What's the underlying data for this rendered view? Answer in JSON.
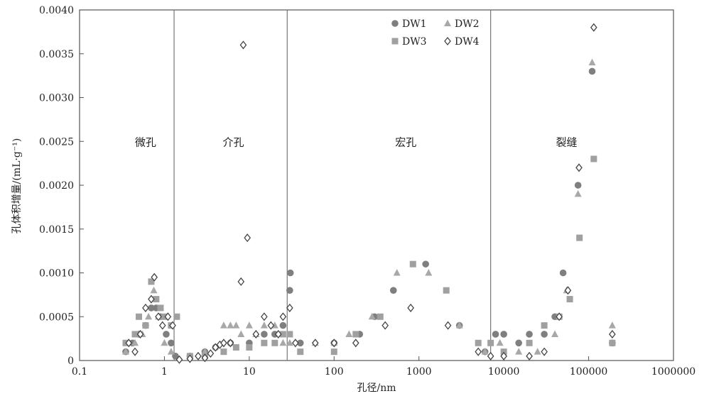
{
  "chart_data": {
    "type": "scatter",
    "x_scale": "log",
    "xlim": [
      0.1,
      1000000
    ],
    "ylim": [
      0,
      0.004
    ],
    "xlabel": "孔径/nm",
    "ylabel": "孔体积增量/(mL·g⁻¹)",
    "x_ticks": [
      "0.1",
      "1",
      "10",
      "100",
      "1000",
      "10000",
      "100000",
      "1000000"
    ],
    "y_ticks": [
      "0",
      "0.0005",
      "0.0010",
      "0.0015",
      "0.0020",
      "0.0025",
      "0.0030",
      "0.0035",
      "0.0040"
    ],
    "grid": false,
    "legend_position": "top-center",
    "dividers": [
      1.3,
      28,
      7000
    ],
    "regions": [
      {
        "label": "微孔",
        "x": 0.6
      },
      {
        "label": "介孔",
        "x": 6.5
      },
      {
        "label": "宏孔",
        "x": 700
      },
      {
        "label": "裂缝",
        "x": 55000
      }
    ],
    "series": [
      {
        "name": "DW1",
        "marker": "circle",
        "color": "#7f7f7f",
        "points": [
          [
            0.35,
            0.0001
          ],
          [
            0.42,
            0.0002
          ],
          [
            0.5,
            0.0003
          ],
          [
            0.6,
            0.0004
          ],
          [
            0.7,
            0.0006
          ],
          [
            0.8,
            0.0006
          ],
          [
            0.9,
            0.0005
          ],
          [
            1.05,
            0.0003
          ],
          [
            1.2,
            0.0002
          ],
          [
            1.35,
            5e-05
          ],
          [
            2,
            5e-05
          ],
          [
            3,
            0.0001
          ],
          [
            4,
            0.00015
          ],
          [
            6,
            0.0002
          ],
          [
            10,
            0.0002
          ],
          [
            15,
            0.0003
          ],
          [
            20,
            0.0003
          ],
          [
            25,
            0.0004
          ],
          [
            30,
            0.0008
          ],
          [
            30.5,
            0.001
          ],
          [
            40,
            0.0002
          ],
          [
            100,
            0.0002
          ],
          [
            200,
            0.0003
          ],
          [
            300,
            0.0005
          ],
          [
            500,
            0.0008
          ],
          [
            1200,
            0.0011
          ],
          [
            3000,
            0.0004
          ],
          [
            6000,
            0.0001
          ],
          [
            8000,
            0.0003
          ],
          [
            10000,
            0.0003
          ],
          [
            15000,
            0.0002
          ],
          [
            20000,
            0.0003
          ],
          [
            30000,
            0.0003
          ],
          [
            40000,
            0.0005
          ],
          [
            50000,
            0.001
          ],
          [
            75000,
            0.002
          ],
          [
            110000,
            0.0033
          ],
          [
            190000,
            0.0002
          ]
        ]
      },
      {
        "name": "DW2",
        "marker": "triangle",
        "color": "#a8a8a8",
        "points": [
          [
            0.35,
            0.0001
          ],
          [
            0.45,
            0.0002
          ],
          [
            0.55,
            0.0003
          ],
          [
            0.65,
            0.0005
          ],
          [
            0.75,
            0.0008
          ],
          [
            0.85,
            0.0005
          ],
          [
            1,
            0.0002
          ],
          [
            1.2,
            0.0001
          ],
          [
            2,
            5e-05
          ],
          [
            3,
            0.0001
          ],
          [
            5,
            0.0004
          ],
          [
            6,
            0.0004
          ],
          [
            7,
            0.0004
          ],
          [
            8,
            0.0003
          ],
          [
            10,
            0.0004
          ],
          [
            12,
            0.0003
          ],
          [
            15,
            0.0004
          ],
          [
            20,
            0.0004
          ],
          [
            25,
            0.0002
          ],
          [
            30,
            0.0002
          ],
          [
            60,
            0.0002
          ],
          [
            100,
            0.0002
          ],
          [
            150,
            0.0003
          ],
          [
            280,
            0.0005
          ],
          [
            550,
            0.001
          ],
          [
            1300,
            0.001
          ],
          [
            3000,
            0.0004
          ],
          [
            6000,
            0.0001
          ],
          [
            9000,
            0.0002
          ],
          [
            15000,
            0.0001
          ],
          [
            25000,
            0.0001
          ],
          [
            40000,
            0.0003
          ],
          [
            55000,
            0.0008
          ],
          [
            75000,
            0.0019
          ],
          [
            110000,
            0.0034
          ],
          [
            190000,
            0.0004
          ]
        ]
      },
      {
        "name": "DW3",
        "marker": "square",
        "color": "#a0a0a0",
        "points": [
          [
            0.35,
            0.0002
          ],
          [
            0.45,
            0.0003
          ],
          [
            0.5,
            0.0005
          ],
          [
            0.6,
            0.0004
          ],
          [
            0.7,
            0.0009
          ],
          [
            0.8,
            0.0007
          ],
          [
            0.9,
            0.0006
          ],
          [
            1,
            0.0005
          ],
          [
            1.2,
            0.0004
          ],
          [
            1.4,
            0.0005
          ],
          [
            2,
            5e-05
          ],
          [
            3,
            5e-05
          ],
          [
            5,
            0.0001
          ],
          [
            7,
            0.00015
          ],
          [
            10,
            0.00015
          ],
          [
            15,
            0.0002
          ],
          [
            20,
            0.0002
          ],
          [
            25,
            0.0003
          ],
          [
            30,
            0.0003
          ],
          [
            40,
            0.0001
          ],
          [
            100,
            0.0001
          ],
          [
            180,
            0.0003
          ],
          [
            350,
            0.0005
          ],
          [
            850,
            0.0011
          ],
          [
            2100,
            0.0008
          ],
          [
            5000,
            0.0002
          ],
          [
            7000,
            0.0002
          ],
          [
            10000,
            0.0001
          ],
          [
            20000,
            0.0002
          ],
          [
            30000,
            0.0004
          ],
          [
            45000,
            0.0005
          ],
          [
            60000,
            0.0007
          ],
          [
            78000,
            0.0014
          ],
          [
            115000,
            0.0023
          ],
          [
            190000,
            0.0002
          ]
        ]
      },
      {
        "name": "DW4",
        "marker": "diamond",
        "color": "#444444",
        "points": [
          [
            0.38,
            0.0002
          ],
          [
            0.45,
            0.0001
          ],
          [
            0.52,
            0.0003
          ],
          [
            0.6,
            0.0006
          ],
          [
            0.7,
            0.0007
          ],
          [
            0.76,
            0.00095
          ],
          [
            0.85,
            0.0005
          ],
          [
            0.95,
            0.0004
          ],
          [
            1.1,
            0.0005
          ],
          [
            1.25,
            0.0004
          ],
          [
            1.5,
            1e-05
          ],
          [
            2,
            2e-05
          ],
          [
            2.5,
            5e-05
          ],
          [
            3,
            3e-05
          ],
          [
            3.5,
            8e-05
          ],
          [
            4,
            0.00015
          ],
          [
            4.5,
            0.00018
          ],
          [
            5,
            0.0002
          ],
          [
            6,
            0.0002
          ],
          [
            8,
            0.0009
          ],
          [
            8.5,
            0.0036
          ],
          [
            9.5,
            0.0014
          ],
          [
            12,
            0.0003
          ],
          [
            15,
            0.0005
          ],
          [
            18,
            0.0004
          ],
          [
            22,
            0.0003
          ],
          [
            25,
            0.0005
          ],
          [
            30,
            0.0006
          ],
          [
            35,
            0.0002
          ],
          [
            60,
            0.0002
          ],
          [
            100,
            0.0002
          ],
          [
            180,
            0.0002
          ],
          [
            400,
            0.0004
          ],
          [
            800,
            0.0006
          ],
          [
            2200,
            0.0004
          ],
          [
            5000,
            0.0001
          ],
          [
            7000,
            5e-05
          ],
          [
            10000,
            5e-05
          ],
          [
            20000,
            5e-05
          ],
          [
            30000,
            0.0001
          ],
          [
            45000,
            0.0005
          ],
          [
            57000,
            0.0008
          ],
          [
            77000,
            0.0022
          ],
          [
            115000,
            0.0038
          ],
          [
            190000,
            0.0003
          ]
        ]
      }
    ]
  }
}
